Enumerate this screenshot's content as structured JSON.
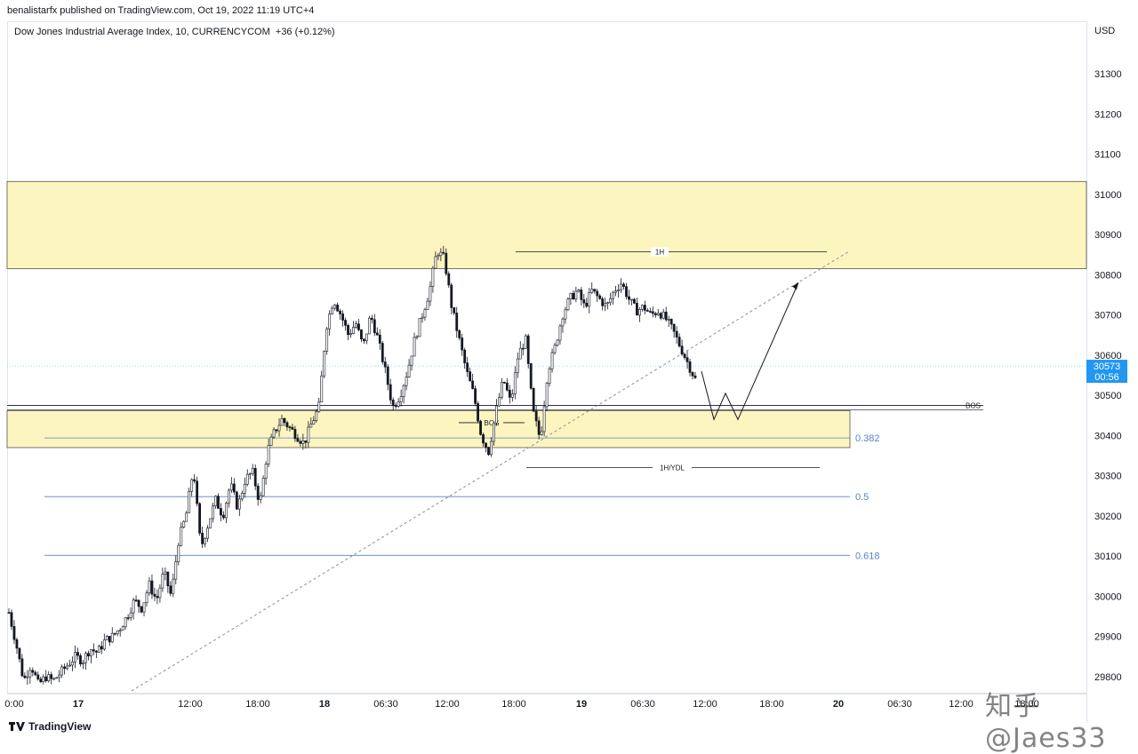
{
  "header": {
    "published": "benalistarfx published on TradingView.com, Oct 19, 2022 11:19 UTC+4",
    "symbol": "Dow Jones Industrial Average Index, 10, CURRENCYCOM",
    "change": "+36 (+0.12%)"
  },
  "footer": {
    "brand": "TradingView",
    "watermark": "知乎 @Jaes33"
  },
  "colors": {
    "zone": "#fdf5bf",
    "up": "#131722",
    "price_badge": "#2196f3",
    "fib": "#5b7fc7",
    "last_line": "#9ad8e0"
  },
  "chart_data": {
    "type": "candlestick",
    "currency": "USD",
    "ylim": [
      29760,
      31410
    ],
    "y_ticks": [
      "31300",
      "31200",
      "31100",
      "31000",
      "30900",
      "30800",
      "30700",
      "30600",
      "30500",
      "30400",
      "30300",
      "30200",
      "30100",
      "30000",
      "29900",
      "29800"
    ],
    "y_tick_values": [
      31300,
      31200,
      31100,
      31000,
      30900,
      30800,
      30700,
      30600,
      30500,
      30400,
      30300,
      30200,
      30100,
      30000,
      29900,
      29800
    ],
    "x_ticks": [
      "0:00",
      "17",
      "12:00",
      "18:00",
      "18",
      "06:30",
      "12:00",
      "18:00",
      "19",
      "06:30",
      "12:00",
      "18:00",
      "20",
      "06:30",
      "12:00",
      "18:00"
    ],
    "last_price": {
      "value": "30573",
      "countdown": "00:56",
      "price": 30573
    },
    "zones": [
      {
        "from": 30815,
        "to": 31032
      },
      {
        "from": 30370,
        "to": 30462
      }
    ],
    "levels": [
      {
        "label": "1H",
        "price": 30857
      },
      {
        "label": "BOS",
        "price": 30432
      },
      {
        "label": "BOS",
        "price": 30475
      },
      {
        "label": "1H/YDL",
        "price": 30320
      }
    ],
    "fibonacci": [
      {
        "label": "0.382",
        "price": 30394
      },
      {
        "label": "0.5",
        "price": 30248
      },
      {
        "label": "0.618",
        "price": 30102
      }
    ],
    "price_path": [
      29960,
      29880,
      29790,
      29830,
      29780,
      29800,
      29790,
      29810,
      29830,
      29850,
      29840,
      29870,
      29860,
      29890,
      29900,
      29920,
      29950,
      29990,
      29970,
      30030,
      29990,
      30060,
      30000,
      30140,
      30200,
      30320,
      30120,
      30180,
      30240,
      30200,
      30280,
      30220,
      30290,
      30310,
      30230,
      30360,
      30410,
      30440,
      30420,
      30400,
      30380,
      30430,
      30470,
      30670,
      30740,
      30700,
      30650,
      30680,
      30620,
      30700,
      30640,
      30560,
      30470,
      30500,
      30560,
      30640,
      30700,
      30760,
      30860,
      30840,
      30720,
      30640,
      30560,
      30500,
      30400,
      30360,
      30460,
      30540,
      30480,
      30600,
      30640,
      30460,
      30390,
      30560,
      30620,
      30700,
      30740,
      30760,
      30720,
      30760,
      30740,
      30720,
      30760,
      30780,
      30740,
      30710,
      30720,
      30700,
      30710,
      30690,
      30660,
      30620,
      30580,
      30540
    ],
    "projection": [
      30560,
      30440,
      30505,
      30440,
      30780
    ]
  }
}
